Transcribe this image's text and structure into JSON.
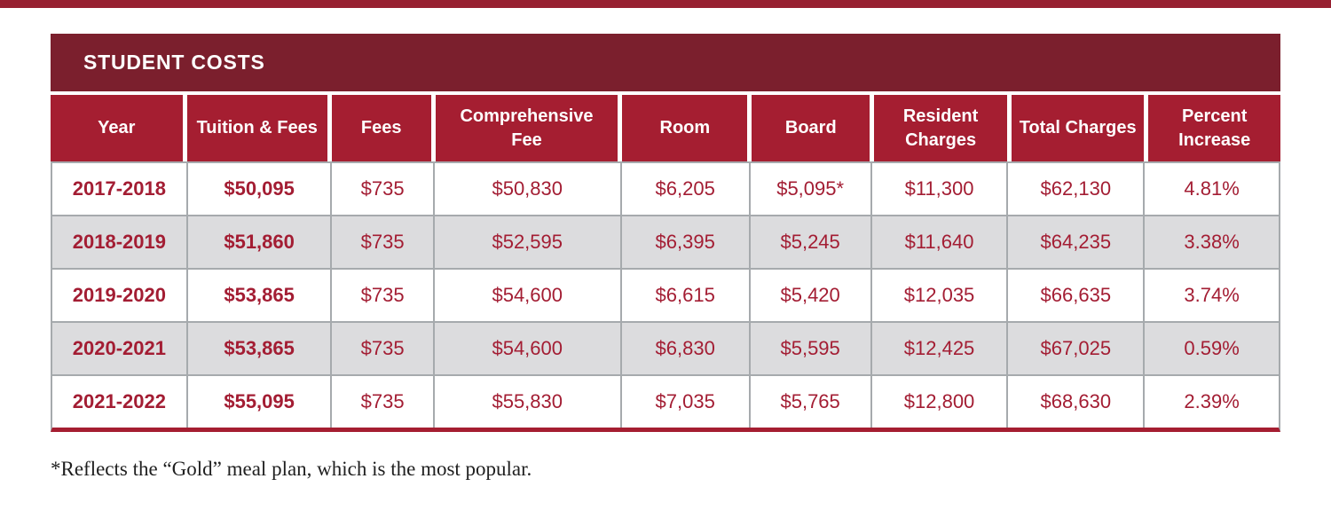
{
  "colors": {
    "strip": "#972031",
    "title_bg": "#7b1f2d",
    "header_bg": "#a51e31",
    "data_text": "#a31d33",
    "row_alt": "#dcdcde",
    "grid_line": "#a6aaad"
  },
  "table": {
    "title": "STUDENT COSTS",
    "columns": [
      "Year",
      "Tuition & Fees",
      "Fees",
      "Comprehensive Fee",
      "Room",
      "Board",
      "Resident Charges",
      "Total Charges",
      "Percent Increase"
    ],
    "rows": [
      [
        "2017-2018",
        "$50,095",
        "$735",
        "$50,830",
        "$6,205",
        "$5,095*",
        "$11,300",
        "$62,130",
        "4.81%"
      ],
      [
        "2018-2019",
        "$51,860",
        "$735",
        "$52,595",
        "$6,395",
        "$5,245",
        "$11,640",
        "$64,235",
        "3.38%"
      ],
      [
        "2019-2020",
        "$53,865",
        "$735",
        "$54,600",
        "$6,615",
        "$5,420",
        "$12,035",
        "$66,635",
        "3.74%"
      ],
      [
        "2020-2021",
        "$53,865",
        "$735",
        "$54,600",
        "$6,830",
        "$5,595",
        "$12,425",
        "$67,025",
        "0.59%"
      ],
      [
        "2021-2022",
        "$55,095",
        "$735",
        "$55,830",
        "$7,035",
        "$5,765",
        "$12,800",
        "$68,630",
        "2.39%"
      ]
    ]
  },
  "footnote": "*Reflects the “Gold” meal plan, which is the most popular."
}
